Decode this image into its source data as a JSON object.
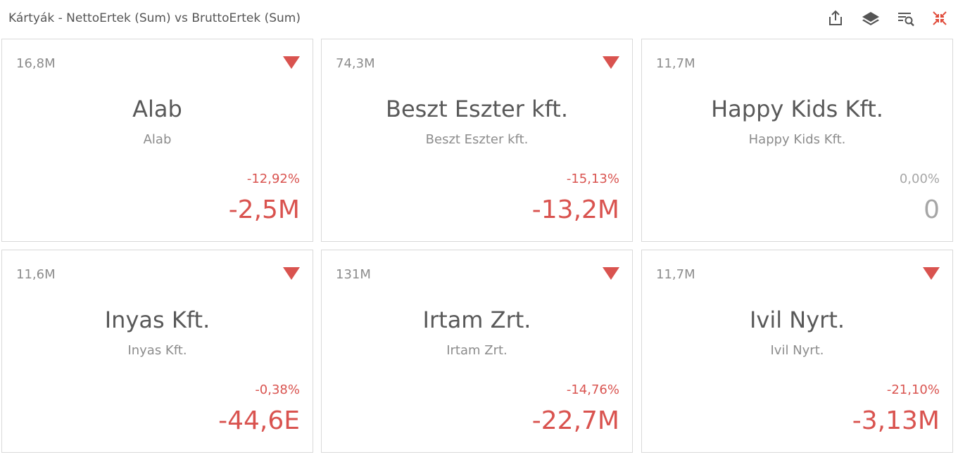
{
  "header": {
    "title": "Kártyák - NettoErtek (Sum) vs BruttoErtek (Sum)",
    "tools": [
      {
        "name": "export-icon",
        "label": "Export"
      },
      {
        "name": "layers-icon",
        "label": "Layers"
      },
      {
        "name": "filter-search-icon",
        "label": "Filter"
      },
      {
        "name": "collapse-icon",
        "label": "Restore"
      }
    ]
  },
  "colors": {
    "negative": "#d9534f",
    "neutral": "#a6a6a6",
    "accent_icon": "#e04b3a",
    "icon": "#555555"
  },
  "cards": [
    {
      "target": "16,8M",
      "title": "Alab",
      "subtitle": "Alab",
      "percent": "-12,92%",
      "delta": "-2,5M",
      "trend": "down"
    },
    {
      "target": "74,3M",
      "title": "Beszt Eszter kft.",
      "subtitle": "Beszt Eszter kft.",
      "percent": "-15,13%",
      "delta": "-13,2M",
      "trend": "down"
    },
    {
      "target": "11,7M",
      "title": "Happy Kids Kft.",
      "subtitle": "Happy Kids Kft.",
      "percent": "0,00%",
      "delta": "0",
      "trend": "none"
    },
    {
      "target": "11,6M",
      "title": "Inyas Kft.",
      "subtitle": "Inyas Kft.",
      "percent": "-0,38%",
      "delta": "-44,6E",
      "trend": "down"
    },
    {
      "target": "131M",
      "title": "Irtam Zrt.",
      "subtitle": "Irtam Zrt.",
      "percent": "-14,76%",
      "delta": "-22,7M",
      "trend": "down"
    },
    {
      "target": "11,7M",
      "title": "Ivil Nyrt.",
      "subtitle": "Ivil Nyrt.",
      "percent": "-21,10%",
      "delta": "-3,13M",
      "trend": "down"
    }
  ]
}
